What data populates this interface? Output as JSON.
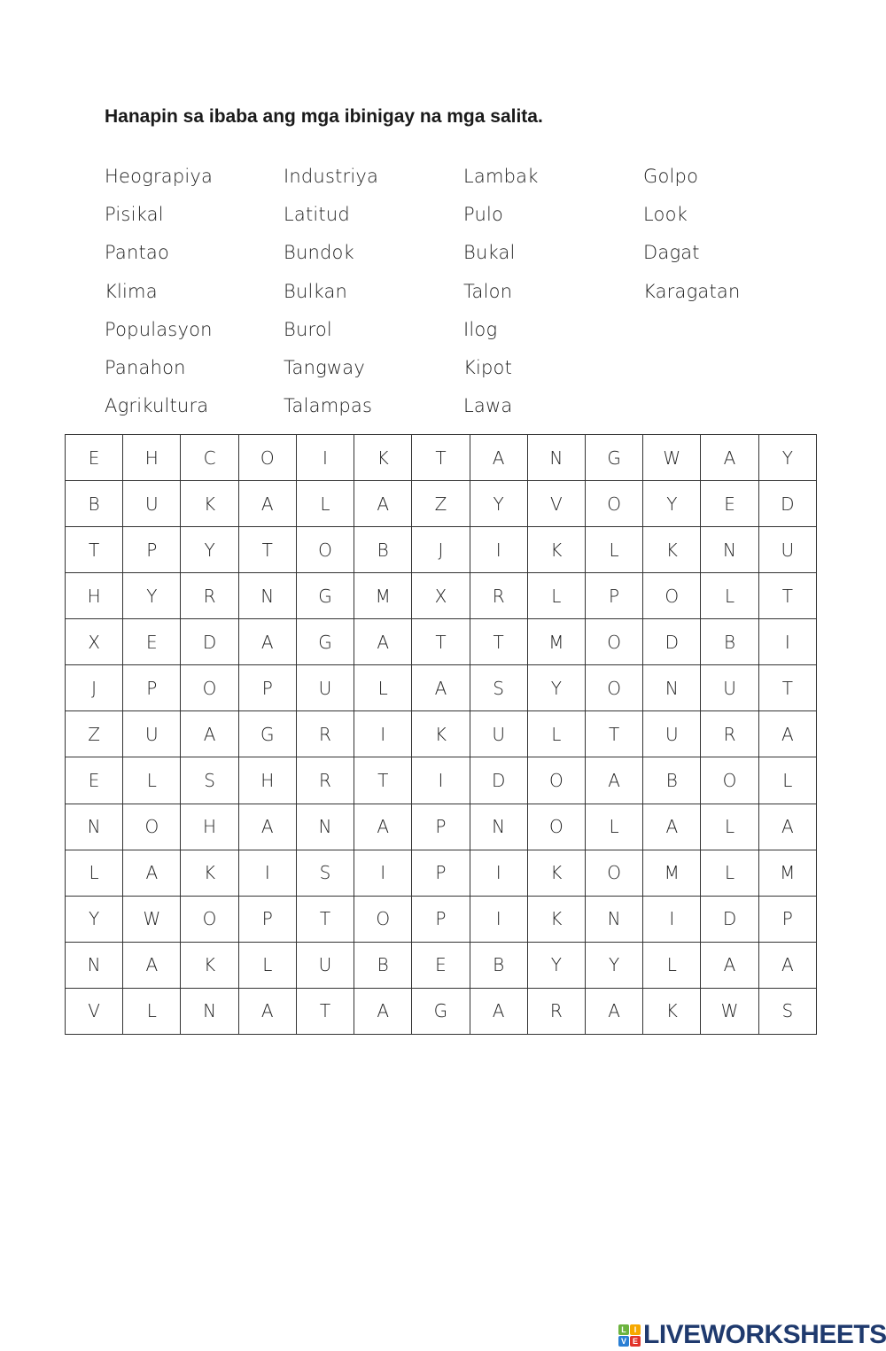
{
  "instruction": "Hanapin sa ibaba ang mga ibinigay na mga salita.",
  "word_columns": [
    [
      "Heograpiya",
      "Pisikal",
      "Pantao",
      "Klima",
      "Populasyon",
      "Panahon",
      "Agrikultura"
    ],
    [
      "Industriya",
      "Latitud",
      "Bundok",
      "Bulkan",
      "Burol",
      "Tangway",
      "Talampas"
    ],
    [
      "Lambak",
      "Pulo",
      "Bukal",
      "Talon",
      "Ilog",
      "Kipot",
      "Lawa"
    ],
    [
      "Golpo",
      "Look",
      "Dagat",
      "Karagatan"
    ]
  ],
  "grid": [
    "EHCOIKTANGWAY",
    "BUKALAZYVOYED",
    "TPYTOBJIKLKNU",
    "HYRNGMXRLPOLT",
    "XEDAGATTMODBI",
    "JPOPULASYONUT",
    "ZUAGRIKULTURA",
    "ELSHRTIDOABOL",
    "NOHANAPNOLALA",
    "LAKISIPIKOMLM",
    "YWOPTOPIKNIDP",
    "NAKLUBEBYYLAA",
    "VLNATAGARAKWS"
  ],
  "logo": {
    "badge": [
      "L",
      "I",
      "V",
      "E"
    ],
    "badge_colors": [
      "#6cb33f",
      "#f6a800",
      "#2a7fd4",
      "#e2332a"
    ],
    "text": "LIVEWORKSHEETS",
    "color": "#1f3a6e"
  }
}
